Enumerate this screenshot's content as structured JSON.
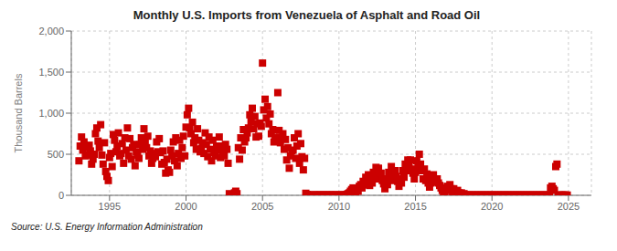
{
  "chart_data": {
    "type": "scatter",
    "title": "Monthly U.S. Imports from Venezuela of Asphalt and Road Oil",
    "ylabel": "Thousand Barrels",
    "annotation": "Source: U.S. Energy Information Administration",
    "color": "#cc0000",
    "marker": "square",
    "grid": true,
    "xlim": [
      1992.5,
      2026.5
    ],
    "xticks": [
      1995,
      2000,
      2005,
      2010,
      2015,
      2020,
      2025
    ],
    "ylim": [
      0,
      2000
    ],
    "yticks": [
      0,
      500,
      {
        "value": 1000,
        "label": "1,000"
      },
      {
        "value": 1500,
        "label": "1,500"
      },
      {
        "value": 2000,
        "label": "2,000"
      }
    ],
    "x": [
      1993.0,
      1993.08,
      1993.17,
      1993.25,
      1993.33,
      1993.42,
      1993.5,
      1993.58,
      1993.67,
      1993.75,
      1993.83,
      1993.92,
      1994.0,
      1994.08,
      1994.17,
      1994.25,
      1994.33,
      1994.42,
      1994.5,
      1994.58,
      1994.67,
      1994.75,
      1994.83,
      1994.92,
      1995.0,
      1995.08,
      1995.17,
      1995.25,
      1995.33,
      1995.42,
      1995.5,
      1995.58,
      1995.67,
      1995.75,
      1995.83,
      1995.92,
      1996.0,
      1996.08,
      1996.17,
      1996.25,
      1996.33,
      1996.42,
      1996.5,
      1996.58,
      1996.67,
      1996.75,
      1996.83,
      1996.92,
      1997.0,
      1997.08,
      1997.17,
      1997.25,
      1997.33,
      1997.42,
      1997.5,
      1997.58,
      1997.67,
      1997.75,
      1997.83,
      1997.92,
      1998.0,
      1998.08,
      1998.17,
      1998.25,
      1998.33,
      1998.42,
      1998.5,
      1998.58,
      1998.67,
      1998.75,
      1998.83,
      1998.92,
      1999.0,
      1999.08,
      1999.17,
      1999.25,
      1999.33,
      1999.42,
      1999.5,
      1999.58,
      1999.67,
      1999.75,
      1999.83,
      1999.92,
      2000.0,
      2000.08,
      2000.17,
      2000.25,
      2000.33,
      2000.42,
      2000.5,
      2000.58,
      2000.67,
      2000.75,
      2000.83,
      2000.92,
      2001.0,
      2001.08,
      2001.17,
      2001.25,
      2001.33,
      2001.42,
      2001.5,
      2001.58,
      2001.67,
      2001.75,
      2001.83,
      2001.92,
      2002.0,
      2002.08,
      2002.17,
      2002.25,
      2002.33,
      2002.42,
      2002.5,
      2002.58,
      2002.67,
      2002.75,
      2002.83,
      2002.92,
      2003.0,
      2003.08,
      2003.17,
      2003.25,
      2003.33,
      2003.42,
      2003.5,
      2003.58,
      2003.67,
      2003.75,
      2003.83,
      2003.92,
      2004.0,
      2004.08,
      2004.17,
      2004.25,
      2004.33,
      2004.42,
      2004.5,
      2004.58,
      2004.67,
      2004.75,
      2004.83,
      2004.92,
      2005.0,
      2005.08,
      2005.17,
      2005.25,
      2005.33,
      2005.42,
      2005.5,
      2005.58,
      2005.67,
      2005.75,
      2005.83,
      2005.92,
      2006.0,
      2006.08,
      2006.17,
      2006.25,
      2006.33,
      2006.42,
      2006.5,
      2006.58,
      2006.67,
      2006.75,
      2006.83,
      2006.92,
      2007.0,
      2007.08,
      2007.17,
      2007.25,
      2007.33,
      2007.42,
      2007.5,
      2007.58,
      2007.67,
      2007.75,
      2007.83,
      2007.92,
      2008.0,
      2008.08,
      2008.17,
      2008.25,
      2008.33,
      2008.42,
      2008.5,
      2008.58,
      2008.67,
      2008.75,
      2008.83,
      2008.92,
      2009.0,
      2009.08,
      2009.17,
      2009.25,
      2009.33,
      2009.42,
      2009.5,
      2009.58,
      2009.67,
      2009.75,
      2009.83,
      2009.92,
      2010.0,
      2010.08,
      2010.17,
      2010.25,
      2010.33,
      2010.42,
      2010.5,
      2010.58,
      2010.67,
      2010.75,
      2010.83,
      2010.92,
      2011.0,
      2011.08,
      2011.17,
      2011.25,
      2011.33,
      2011.42,
      2011.5,
      2011.58,
      2011.67,
      2011.75,
      2011.83,
      2011.92,
      2012.0,
      2012.08,
      2012.17,
      2012.25,
      2012.33,
      2012.42,
      2012.5,
      2012.58,
      2012.67,
      2012.75,
      2012.83,
      2012.92,
      2013.0,
      2013.08,
      2013.17,
      2013.25,
      2013.33,
      2013.42,
      2013.5,
      2013.58,
      2013.67,
      2013.75,
      2013.83,
      2013.92,
      2014.0,
      2014.08,
      2014.17,
      2014.25,
      2014.33,
      2014.42,
      2014.5,
      2014.58,
      2014.67,
      2014.75,
      2014.83,
      2014.92,
      2015.0,
      2015.08,
      2015.17,
      2015.25,
      2015.33,
      2015.42,
      2015.5,
      2015.58,
      2015.67,
      2015.75,
      2015.83,
      2015.92,
      2016.0,
      2016.08,
      2016.17,
      2016.25,
      2016.33,
      2016.42,
      2016.5,
      2016.58,
      2016.67,
      2016.75,
      2016.83,
      2016.92,
      2017.0,
      2017.08,
      2017.17,
      2017.25,
      2017.33,
      2017.42,
      2017.5,
      2017.58,
      2017.67,
      2017.75,
      2017.83,
      2017.92,
      2018.0,
      2018.08,
      2018.17,
      2018.25,
      2018.33,
      2018.42,
      2018.5,
      2018.58,
      2018.67,
      2018.75,
      2018.83,
      2018.92,
      2019.0,
      2019.08,
      2019.17,
      2019.25,
      2019.33,
      2019.42,
      2019.5,
      2019.58,
      2019.67,
      2019.75,
      2019.83,
      2019.92,
      2020.0,
      2020.08,
      2020.17,
      2020.25,
      2020.33,
      2020.42,
      2020.5,
      2020.58,
      2020.67,
      2020.75,
      2020.83,
      2020.92,
      2021.0,
      2021.08,
      2021.17,
      2021.25,
      2021.33,
      2021.42,
      2021.5,
      2021.58,
      2021.67,
      2021.75,
      2021.83,
      2021.92,
      2022.0,
      2022.08,
      2022.17,
      2022.25,
      2022.33,
      2022.42,
      2022.5,
      2022.58,
      2022.67,
      2022.75,
      2022.83,
      2022.92,
      2023.0,
      2023.08,
      2023.17,
      2023.25,
      2023.33,
      2023.42,
      2023.5,
      2023.58,
      2023.67,
      2023.75,
      2023.83,
      2023.92,
      2024.0,
      2024.08,
      2024.17,
      2024.25,
      2024.33,
      2024.42,
      2024.5,
      2024.58,
      2024.67,
      2024.75,
      2024.83,
      2024.92
    ],
    "values": [
      420,
      600,
      710,
      550,
      650,
      480,
      580,
      490,
      610,
      540,
      380,
      440,
      500,
      750,
      820,
      660,
      580,
      860,
      490,
      380,
      640,
      290,
      230,
      180,
      460,
      510,
      350,
      740,
      670,
      530,
      600,
      760,
      480,
      510,
      630,
      390,
      700,
      550,
      820,
      480,
      690,
      440,
      580,
      620,
      360,
      530,
      490,
      450,
      620,
      700,
      560,
      810,
      650,
      580,
      720,
      480,
      540,
      390,
      450,
      510,
      470,
      650,
      530,
      690,
      520,
      380,
      540,
      400,
      270,
      440,
      310,
      280,
      550,
      480,
      650,
      420,
      700,
      360,
      510,
      670,
      450,
      580,
      720,
      480,
      830,
      980,
      1060,
      820,
      750,
      890,
      640,
      700,
      560,
      810,
      670,
      530,
      570,
      640,
      510,
      760,
      620,
      470,
      710,
      560,
      420,
      670,
      520,
      480,
      600,
      550,
      710,
      460,
      600,
      540,
      480,
      620,
      560,
      390,
      20,
      5,
      10,
      5,
      30,
      50,
      20,
      580,
      440,
      700,
      550,
      800,
      650,
      700,
      760,
      820,
      980,
      900,
      1060,
      810,
      960,
      710,
      870,
      720,
      880,
      840,
      1610,
      1040,
      1170,
      940,
      1080,
      870,
      990,
      750,
      800,
      650,
      700,
      660,
      1250,
      790,
      640,
      700,
      750,
      560,
      680,
      430,
      580,
      330,
      480,
      540,
      550,
      700,
      450,
      600,
      750,
      390,
      630,
      470,
      310,
      450,
      25,
      10,
      5,
      3,
      2,
      4,
      3,
      5,
      4,
      3,
      4,
      5,
      3,
      4,
      5,
      3,
      4,
      5,
      3,
      4,
      5,
      3,
      4,
      5,
      3,
      4,
      3,
      5,
      4,
      3,
      5,
      4,
      10,
      20,
      30,
      50,
      70,
      90,
      60,
      40,
      80,
      50,
      110,
      130,
      90,
      170,
      130,
      220,
      180,
      250,
      120,
      200,
      150,
      280,
      200,
      340,
      260,
      330,
      200,
      270,
      180,
      140,
      80,
      200,
      130,
      280,
      200,
      350,
      260,
      180,
      300,
      230,
      170,
      110,
      200,
      150,
      300,
      220,
      380,
      300,
      430,
      360,
      430,
      320,
      270,
      200,
      280,
      420,
      350,
      500,
      380,
      300,
      200,
      320,
      180,
      260,
      150,
      100,
      150,
      200,
      250,
      200,
      160,
      200,
      150,
      120,
      90,
      60,
      40,
      30,
      80,
      110,
      60,
      130,
      80,
      40,
      80,
      50,
      30,
      60,
      30,
      20,
      30,
      10,
      20,
      5,
      3,
      5,
      3,
      4,
      3,
      4,
      3,
      4,
      3,
      4,
      3,
      4,
      3,
      4,
      3,
      4,
      3,
      4,
      3,
      4,
      3,
      4,
      3,
      4,
      3,
      4,
      3,
      4,
      3,
      4,
      3,
      4,
      3,
      4,
      3,
      4,
      3,
      4,
      3,
      4,
      3,
      4,
      3,
      4,
      3,
      4,
      3,
      4,
      3,
      4,
      3,
      4,
      3,
      4,
      3,
      4,
      3,
      4,
      3,
      4,
      3,
      4,
      3,
      4,
      3,
      4,
      90,
      110,
      80,
      60,
      350,
      380,
      3,
      3,
      3,
      3,
      3,
      3,
      3,
      3
    ]
  }
}
